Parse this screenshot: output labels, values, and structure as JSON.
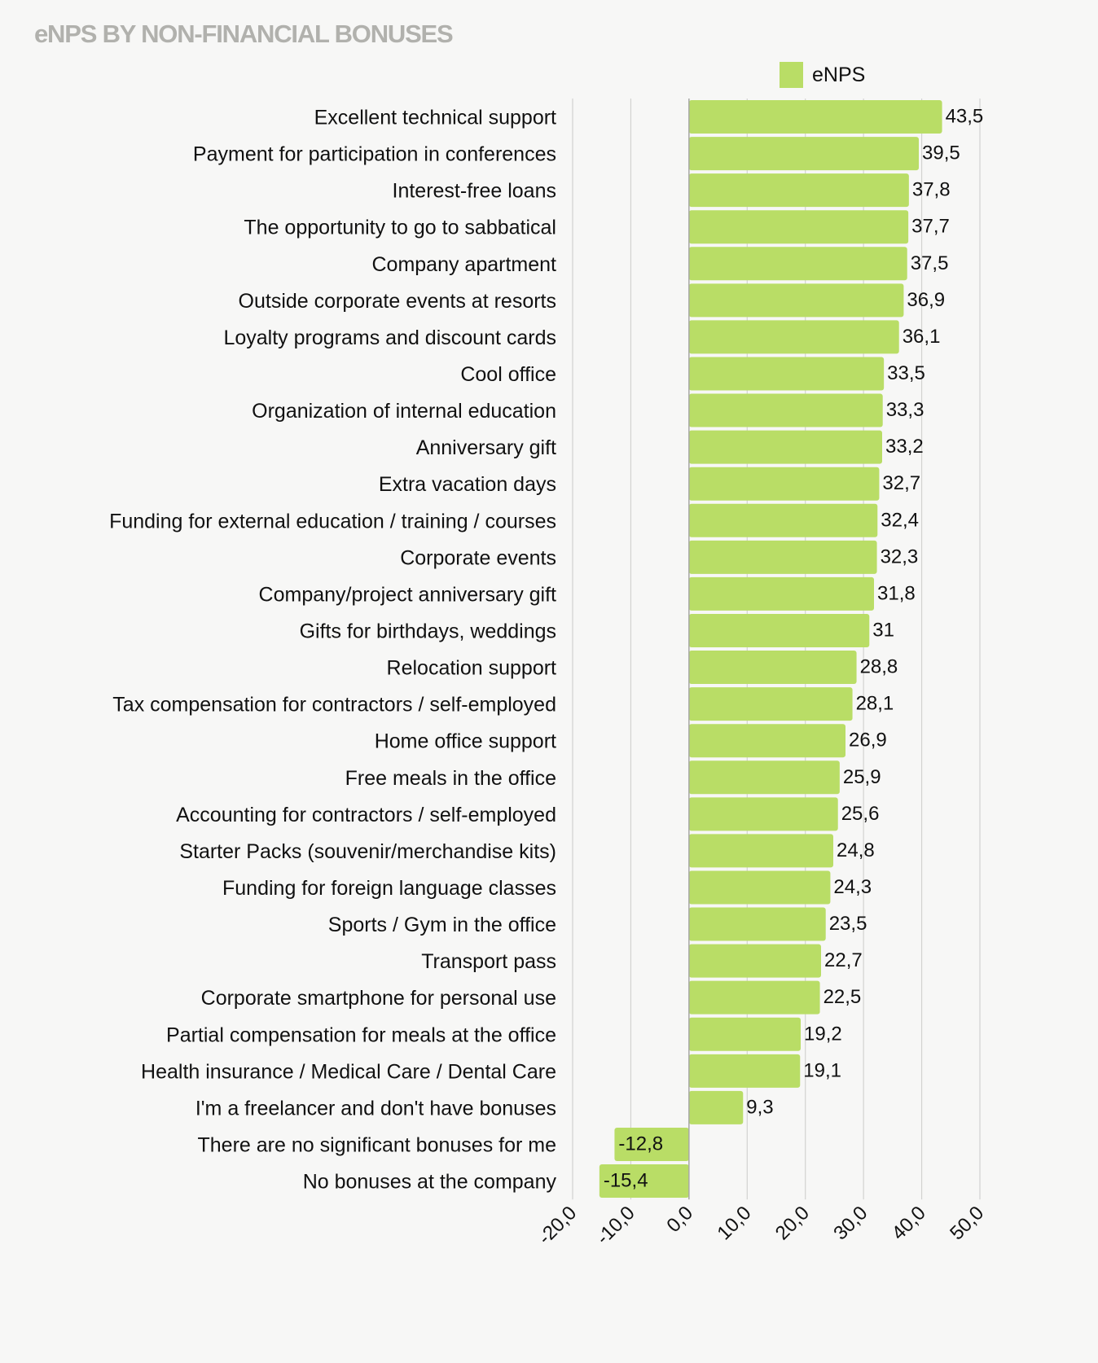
{
  "chart_data": {
    "type": "bar",
    "orientation": "horizontal",
    "title": "eNPS BY NON-FINANCIAL BONUSES",
    "xlabel": "",
    "ylabel": "",
    "xlim": [
      -20,
      50
    ],
    "xticks": [
      "-20,0",
      "-10,0",
      "0,0",
      "10,0",
      "20,0",
      "30,0",
      "40,0",
      "50,0"
    ],
    "xtick_values": [
      -20,
      -10,
      0,
      10,
      20,
      30,
      40,
      50
    ],
    "grid": true,
    "legend": {
      "position": "top-right",
      "entries": [
        "eNPS"
      ]
    },
    "color": "#b9dd66",
    "categories": [
      "Excellent technical support",
      "Payment for participation in conferences",
      "Interest-free loans",
      "The opportunity to go to sabbatical",
      "Company apartment",
      "Outside corporate events at resorts",
      "Loyalty programs and discount cards",
      "Cool office",
      "Organization of internal education",
      "Anniversary gift",
      "Extra vacation days",
      "Funding for external education / training / courses",
      "Corporate events",
      "Company/project anniversary gift",
      "Gifts for birthdays, weddings",
      "Relocation support",
      "Tax compensation for contractors / self-employed",
      "Home office support",
      "Free meals in the office",
      "Accounting for contractors / self-employed",
      "Starter Packs (souvenir/merchandise kits)",
      "Funding for foreign language classes",
      "Sports / Gym in the office",
      "Transport pass",
      "Corporate smartphone for personal use",
      "Partial compensation for meals at the office",
      "Health insurance / Medical Care / Dental Care",
      "I'm a freelancer and don't have bonuses",
      "There are no significant bonuses for me",
      "No bonuses at the company"
    ],
    "series": [
      {
        "name": "eNPS",
        "values": [
          43.5,
          39.5,
          37.8,
          37.7,
          37.5,
          36.9,
          36.1,
          33.5,
          33.3,
          33.2,
          32.7,
          32.4,
          32.3,
          31.8,
          31,
          28.8,
          28.1,
          26.9,
          25.9,
          25.6,
          24.8,
          24.3,
          23.5,
          22.7,
          22.5,
          19.2,
          19.1,
          9.3,
          -12.8,
          -15.4
        ],
        "labels": [
          "43,5",
          "39,5",
          "37,8",
          "37,7",
          "37,5",
          "36,9",
          "36,1",
          "33,5",
          "33,3",
          "33,2",
          "32,7",
          "32,4",
          "32,3",
          "31,8",
          "31",
          "28,8",
          "28,1",
          "26,9",
          "25,9",
          "25,6",
          "24,8",
          "24,3",
          "23,5",
          "22,7",
          "22,5",
          "19,2",
          "19,1",
          "9,3",
          "-12,8",
          "-15,4"
        ]
      }
    ]
  }
}
